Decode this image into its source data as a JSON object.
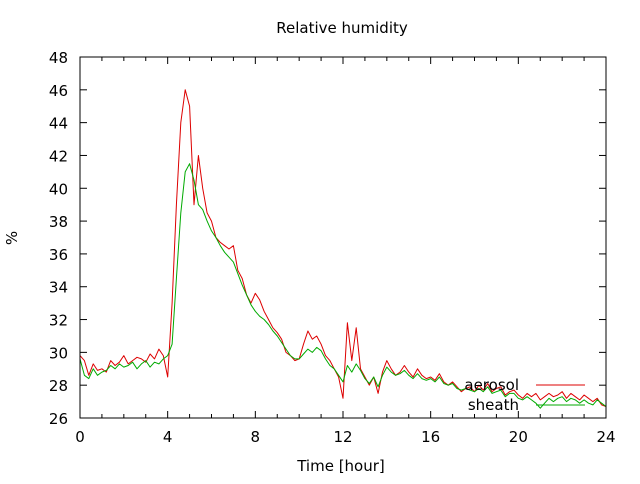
{
  "chart_data": {
    "type": "line",
    "title": "Relative humidity",
    "xlabel": "Time [hour]",
    "ylabel": "%",
    "xlim": [
      0,
      24
    ],
    "ylim": [
      26,
      48
    ],
    "x_ticks": [
      0,
      4,
      8,
      12,
      16,
      20,
      24
    ],
    "y_ticks": [
      26,
      28,
      30,
      32,
      34,
      36,
      38,
      40,
      42,
      44,
      46,
      48
    ],
    "grid": false,
    "legend_position": "bottom-right",
    "series": [
      {
        "name": "aerosol",
        "color": "#dd0000",
        "points": [
          [
            0.0,
            29.8
          ],
          [
            0.2,
            29.5
          ],
          [
            0.4,
            28.6
          ],
          [
            0.6,
            29.3
          ],
          [
            0.8,
            28.9
          ],
          [
            1.0,
            29.0
          ],
          [
            1.2,
            28.8
          ],
          [
            1.4,
            29.5
          ],
          [
            1.6,
            29.2
          ],
          [
            1.8,
            29.4
          ],
          [
            2.0,
            29.8
          ],
          [
            2.2,
            29.3
          ],
          [
            2.4,
            29.5
          ],
          [
            2.6,
            29.7
          ],
          [
            2.8,
            29.6
          ],
          [
            3.0,
            29.4
          ],
          [
            3.2,
            29.9
          ],
          [
            3.4,
            29.6
          ],
          [
            3.6,
            30.2
          ],
          [
            3.8,
            29.8
          ],
          [
            4.0,
            28.5
          ],
          [
            4.2,
            33.0
          ],
          [
            4.4,
            39.0
          ],
          [
            4.6,
            44.0
          ],
          [
            4.8,
            46.0
          ],
          [
            5.0,
            45.0
          ],
          [
            5.2,
            39.0
          ],
          [
            5.4,
            42.0
          ],
          [
            5.6,
            40.0
          ],
          [
            5.8,
            38.5
          ],
          [
            6.0,
            38.0
          ],
          [
            6.2,
            37.0
          ],
          [
            6.4,
            36.7
          ],
          [
            6.6,
            36.5
          ],
          [
            6.8,
            36.3
          ],
          [
            7.0,
            36.5
          ],
          [
            7.2,
            35.0
          ],
          [
            7.4,
            34.5
          ],
          [
            7.6,
            33.5
          ],
          [
            7.8,
            33.0
          ],
          [
            8.0,
            33.6
          ],
          [
            8.2,
            33.2
          ],
          [
            8.4,
            32.5
          ],
          [
            8.6,
            32.0
          ],
          [
            8.8,
            31.5
          ],
          [
            9.0,
            31.2
          ],
          [
            9.2,
            30.8
          ],
          [
            9.4,
            30.0
          ],
          [
            9.6,
            29.8
          ],
          [
            9.8,
            29.5
          ],
          [
            10.0,
            29.6
          ],
          [
            10.2,
            30.5
          ],
          [
            10.4,
            31.3
          ],
          [
            10.6,
            30.8
          ],
          [
            10.8,
            31.0
          ],
          [
            11.0,
            30.5
          ],
          [
            11.2,
            29.8
          ],
          [
            11.4,
            29.5
          ],
          [
            11.6,
            29.0
          ],
          [
            11.8,
            28.5
          ],
          [
            12.0,
            27.2
          ],
          [
            12.2,
            31.8
          ],
          [
            12.4,
            29.5
          ],
          [
            12.6,
            31.5
          ],
          [
            12.8,
            29.0
          ],
          [
            13.0,
            28.5
          ],
          [
            13.2,
            28.0
          ],
          [
            13.4,
            28.5
          ],
          [
            13.6,
            27.5
          ],
          [
            13.8,
            28.8
          ],
          [
            14.0,
            29.5
          ],
          [
            14.2,
            29.0
          ],
          [
            14.4,
            28.6
          ],
          [
            14.6,
            28.8
          ],
          [
            14.8,
            29.2
          ],
          [
            15.0,
            28.8
          ],
          [
            15.2,
            28.5
          ],
          [
            15.4,
            29.0
          ],
          [
            15.6,
            28.6
          ],
          [
            15.8,
            28.4
          ],
          [
            16.0,
            28.5
          ],
          [
            16.2,
            28.3
          ],
          [
            16.4,
            28.7
          ],
          [
            16.6,
            28.2
          ],
          [
            16.8,
            28.0
          ],
          [
            17.0,
            28.2
          ],
          [
            17.2,
            27.9
          ],
          [
            17.4,
            27.6
          ],
          [
            17.6,
            27.8
          ],
          [
            17.8,
            27.9
          ],
          [
            18.0,
            27.6
          ],
          [
            18.2,
            28.0
          ],
          [
            18.4,
            27.7
          ],
          [
            18.6,
            28.1
          ],
          [
            18.8,
            27.6
          ],
          [
            19.0,
            27.8
          ],
          [
            19.2,
            27.9
          ],
          [
            19.4,
            27.4
          ],
          [
            19.6,
            27.6
          ],
          [
            19.8,
            27.7
          ],
          [
            20.0,
            27.4
          ],
          [
            20.2,
            27.2
          ],
          [
            20.4,
            27.5
          ],
          [
            20.6,
            27.3
          ],
          [
            20.8,
            27.5
          ],
          [
            21.0,
            27.1
          ],
          [
            21.2,
            27.3
          ],
          [
            21.4,
            27.5
          ],
          [
            21.6,
            27.3
          ],
          [
            21.8,
            27.4
          ],
          [
            22.0,
            27.6
          ],
          [
            22.2,
            27.2
          ],
          [
            22.4,
            27.5
          ],
          [
            22.6,
            27.3
          ],
          [
            22.8,
            27.1
          ],
          [
            23.0,
            27.4
          ],
          [
            23.2,
            27.2
          ],
          [
            23.4,
            27.0
          ],
          [
            23.6,
            27.2
          ],
          [
            23.8,
            26.8
          ],
          [
            24.0,
            26.7
          ]
        ]
      },
      {
        "name": "sheath",
        "color": "#00aa00",
        "points": [
          [
            0.0,
            29.6
          ],
          [
            0.2,
            28.6
          ],
          [
            0.4,
            28.4
          ],
          [
            0.6,
            29.0
          ],
          [
            0.8,
            28.6
          ],
          [
            1.0,
            28.8
          ],
          [
            1.2,
            28.9
          ],
          [
            1.4,
            29.2
          ],
          [
            1.6,
            29.0
          ],
          [
            1.8,
            29.3
          ],
          [
            2.0,
            29.1
          ],
          [
            2.2,
            29.2
          ],
          [
            2.4,
            29.4
          ],
          [
            2.6,
            29.0
          ],
          [
            2.8,
            29.3
          ],
          [
            3.0,
            29.5
          ],
          [
            3.2,
            29.1
          ],
          [
            3.4,
            29.4
          ],
          [
            3.6,
            29.3
          ],
          [
            3.8,
            29.6
          ],
          [
            4.0,
            29.8
          ],
          [
            4.2,
            30.5
          ],
          [
            4.4,
            34.5
          ],
          [
            4.6,
            38.5
          ],
          [
            4.8,
            41.0
          ],
          [
            5.0,
            41.5
          ],
          [
            5.2,
            40.5
          ],
          [
            5.4,
            39.0
          ],
          [
            5.6,
            38.7
          ],
          [
            5.8,
            38.0
          ],
          [
            6.0,
            37.4
          ],
          [
            6.2,
            37.0
          ],
          [
            6.4,
            36.5
          ],
          [
            6.6,
            36.1
          ],
          [
            6.8,
            35.8
          ],
          [
            7.0,
            35.5
          ],
          [
            7.2,
            34.8
          ],
          [
            7.4,
            34.1
          ],
          [
            7.6,
            33.5
          ],
          [
            7.8,
            32.9
          ],
          [
            8.0,
            32.5
          ],
          [
            8.2,
            32.2
          ],
          [
            8.4,
            32.0
          ],
          [
            8.6,
            31.7
          ],
          [
            8.8,
            31.3
          ],
          [
            9.0,
            31.0
          ],
          [
            9.2,
            30.6
          ],
          [
            9.4,
            30.2
          ],
          [
            9.6,
            29.8
          ],
          [
            9.8,
            29.6
          ],
          [
            10.0,
            29.6
          ],
          [
            10.2,
            29.9
          ],
          [
            10.4,
            30.2
          ],
          [
            10.6,
            30.0
          ],
          [
            10.8,
            30.3
          ],
          [
            11.0,
            30.1
          ],
          [
            11.2,
            29.6
          ],
          [
            11.4,
            29.2
          ],
          [
            11.6,
            29.0
          ],
          [
            11.8,
            28.6
          ],
          [
            12.0,
            28.2
          ],
          [
            12.2,
            29.2
          ],
          [
            12.4,
            28.8
          ],
          [
            12.6,
            29.3
          ],
          [
            12.8,
            28.9
          ],
          [
            13.0,
            28.4
          ],
          [
            13.2,
            28.1
          ],
          [
            13.4,
            28.5
          ],
          [
            13.6,
            27.9
          ],
          [
            13.8,
            28.6
          ],
          [
            14.0,
            29.1
          ],
          [
            14.2,
            28.8
          ],
          [
            14.4,
            28.6
          ],
          [
            14.6,
            28.7
          ],
          [
            14.8,
            28.9
          ],
          [
            15.0,
            28.6
          ],
          [
            15.2,
            28.4
          ],
          [
            15.4,
            28.7
          ],
          [
            15.6,
            28.4
          ],
          [
            15.8,
            28.3
          ],
          [
            16.0,
            28.4
          ],
          [
            16.2,
            28.2
          ],
          [
            16.4,
            28.5
          ],
          [
            16.6,
            28.1
          ],
          [
            16.8,
            28.0
          ],
          [
            17.0,
            28.1
          ],
          [
            17.2,
            27.8
          ],
          [
            17.4,
            27.7
          ],
          [
            17.6,
            27.8
          ],
          [
            17.8,
            27.7
          ],
          [
            18.0,
            27.6
          ],
          [
            18.2,
            27.8
          ],
          [
            18.4,
            27.6
          ],
          [
            18.6,
            27.9
          ],
          [
            18.8,
            27.5
          ],
          [
            19.0,
            27.6
          ],
          [
            19.2,
            27.7
          ],
          [
            19.4,
            27.3
          ],
          [
            19.6,
            27.5
          ],
          [
            19.8,
            27.5
          ],
          [
            20.0,
            27.2
          ],
          [
            20.2,
            27.1
          ],
          [
            20.4,
            27.3
          ],
          [
            20.6,
            27.1
          ],
          [
            20.8,
            26.9
          ],
          [
            21.0,
            26.6
          ],
          [
            21.2,
            26.9
          ],
          [
            21.4,
            27.2
          ],
          [
            21.6,
            27.0
          ],
          [
            21.8,
            27.2
          ],
          [
            22.0,
            27.3
          ],
          [
            22.2,
            27.0
          ],
          [
            22.4,
            27.2
          ],
          [
            22.6,
            27.1
          ],
          [
            22.8,
            26.9
          ],
          [
            23.0,
            27.1
          ],
          [
            23.2,
            26.9
          ],
          [
            23.4,
            26.8
          ],
          [
            23.6,
            27.1
          ],
          [
            23.8,
            26.9
          ],
          [
            24.0,
            26.7
          ]
        ]
      }
    ]
  }
}
